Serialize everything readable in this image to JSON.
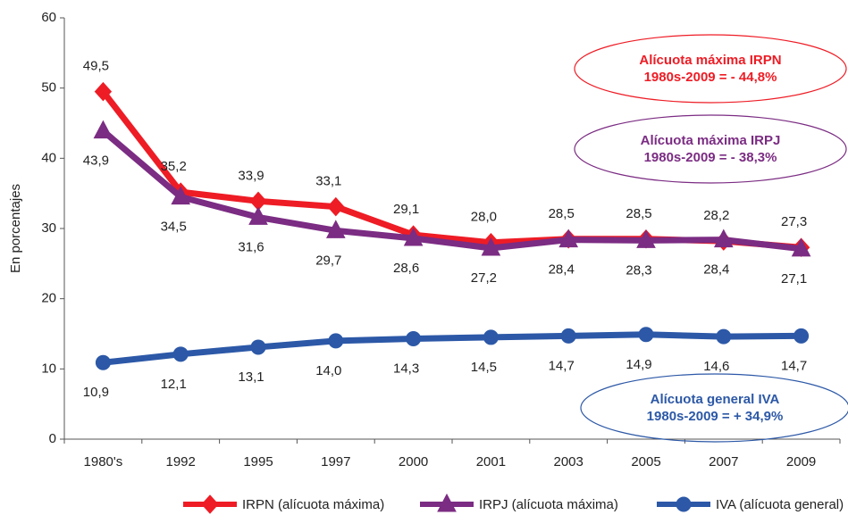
{
  "chart_data": {
    "type": "line",
    "y_label": "En porcentajes",
    "categories": [
      "1980's",
      "1992",
      "1995",
      "1997",
      "2000",
      "2001",
      "2003",
      "2005",
      "2007",
      "2009"
    ],
    "ylim": [
      0,
      60
    ],
    "yticks": [
      0,
      10,
      20,
      30,
      40,
      50,
      60
    ],
    "series": [
      {
        "name": "IRPN (alícuota máxima)",
        "color": "#ee1c25",
        "marker": "diamond",
        "values": [
          49.5,
          35.2,
          33.9,
          33.1,
          29.1,
          28.0,
          28.5,
          28.5,
          28.2,
          27.3
        ],
        "value_labels": [
          "49,5",
          "35,2",
          "33,9",
          "33,1",
          "29,1",
          "28,0",
          "28,5",
          "28,5",
          "28,2",
          "27,3"
        ]
      },
      {
        "name": "IRPJ (alícuota máxima)",
        "color": "#7b2c83",
        "marker": "triangle",
        "values": [
          43.9,
          34.5,
          31.6,
          29.7,
          28.6,
          27.2,
          28.4,
          28.3,
          28.4,
          27.1
        ],
        "value_labels": [
          "43,9",
          "34,5",
          "31,6",
          "29,7",
          "28,6",
          "27,2",
          "28,4",
          "28,3",
          "28,4",
          "27,1"
        ]
      },
      {
        "name": "IVA (alícuota general)",
        "color": "#2c58a7",
        "marker": "circle",
        "values": [
          10.9,
          12.1,
          13.1,
          14.0,
          14.3,
          14.5,
          14.7,
          14.9,
          14.6,
          14.7
        ],
        "value_labels": [
          "10,9",
          "12,1",
          "13,1",
          "14,0",
          "14,3",
          "14,5",
          "14,7",
          "14,9",
          "14,6",
          "14,7"
        ]
      }
    ],
    "annotations": [
      {
        "lines": [
          "Alícuota máxima IRPN",
          "1980s-2009 = - 44,8%"
        ],
        "color": "#ee1c25"
      },
      {
        "lines": [
          "Alícuota máxima IRPJ",
          "1980s-2009 = - 38,3%"
        ],
        "color": "#7b2c83"
      },
      {
        "lines": [
          "Alícuota general IVA",
          "1980s-2009 = + 34,9%"
        ],
        "color": "#2c58a7"
      }
    ]
  }
}
